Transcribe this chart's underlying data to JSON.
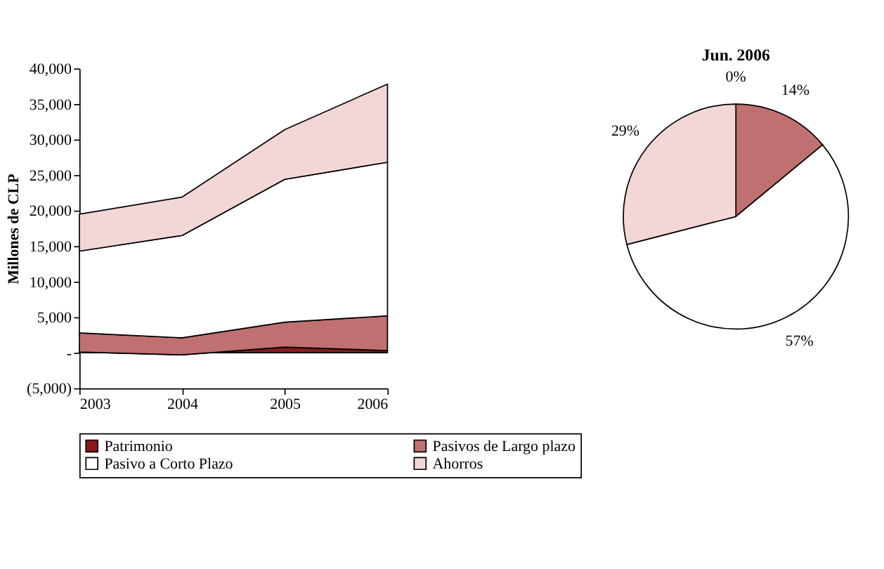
{
  "chart_data": [
    {
      "type": "area",
      "stacked": true,
      "x": [
        2003,
        2004,
        2005,
        2006
      ],
      "ylabel": "Millones de CLP",
      "xlim": [
        2003,
        2006
      ],
      "xticks": [
        2003,
        2004,
        2005,
        2006
      ],
      "ylim": [
        -5000,
        40000
      ],
      "yticks": [
        {
          "value": -5000,
          "label": "(5,000)"
        },
        {
          "value": 0,
          "label": "-"
        },
        {
          "value": 5000,
          "label": "5,000"
        },
        {
          "value": 10000,
          "label": "10,000"
        },
        {
          "value": 15000,
          "label": "15,000"
        },
        {
          "value": 20000,
          "label": "20,000"
        },
        {
          "value": 25000,
          "label": "25,000"
        },
        {
          "value": 30000,
          "label": "30,000"
        },
        {
          "value": 35000,
          "label": "35,000"
        },
        {
          "value": 40000,
          "label": "40,000"
        }
      ],
      "legend": "bottom",
      "grid": false,
      "series": [
        {
          "name": "Patrimonio",
          "color": "#8b1a1a",
          "values": [
            100,
            -300,
            800,
            300
          ]
        },
        {
          "name": "Pasivos de Largo plazo",
          "color": "#c07070",
          "values": [
            2700,
            2400,
            3500,
            4900
          ]
        },
        {
          "name": "Pasivo a Corto Plazo",
          "color": "#ffffff",
          "values": [
            11500,
            14400,
            20100,
            21600
          ]
        },
        {
          "name": "Ahorros",
          "color": "#f3d6d6",
          "values": [
            5200,
            5400,
            7000,
            11000
          ]
        }
      ]
    },
    {
      "type": "pie",
      "title": "Jun. 2006",
      "categories": [
        null,
        null,
        null,
        null
      ],
      "values": [
        0,
        14,
        57,
        29
      ],
      "colors": [
        "#8b1a1a",
        "#c07070",
        "#ffffff",
        "#f3d6d6"
      ],
      "value_labels": [
        "0%",
        "14%",
        "57%",
        "29%"
      ]
    }
  ]
}
